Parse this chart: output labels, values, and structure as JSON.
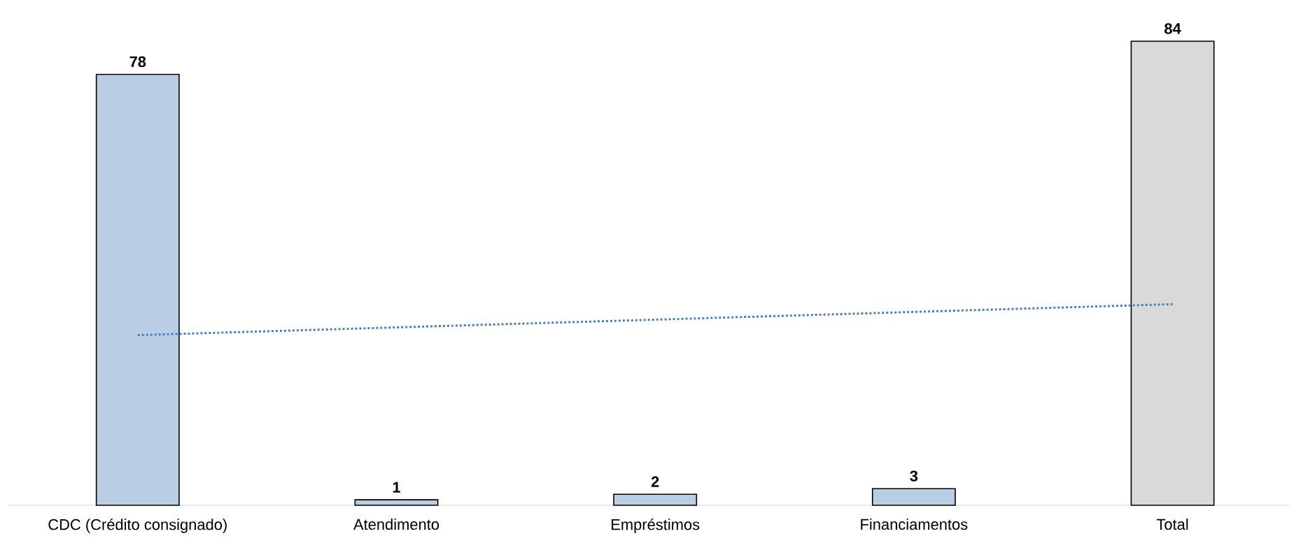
{
  "chart_data": {
    "type": "bar",
    "categories": [
      "CDC (Crédito consignado)",
      "Atendimento",
      "Empréstimos",
      "Financiamentos",
      "Total"
    ],
    "series": [
      {
        "values": [
          78,
          1,
          2,
          3,
          84
        ],
        "value_labels": [
          "78",
          "1",
          "2",
          "3",
          "84"
        ],
        "colors": [
          "#b9cde5",
          "#b9cde5",
          "#b9cde5",
          "#b9cde5",
          "#d9d9d9"
        ]
      },
      {
        "type": "line",
        "values": [
          30.8,
          32.2,
          33.6,
          35.0,
          36.4
        ],
        "color": "#4a7ebb",
        "line_style": "dotted"
      }
    ]
  }
}
